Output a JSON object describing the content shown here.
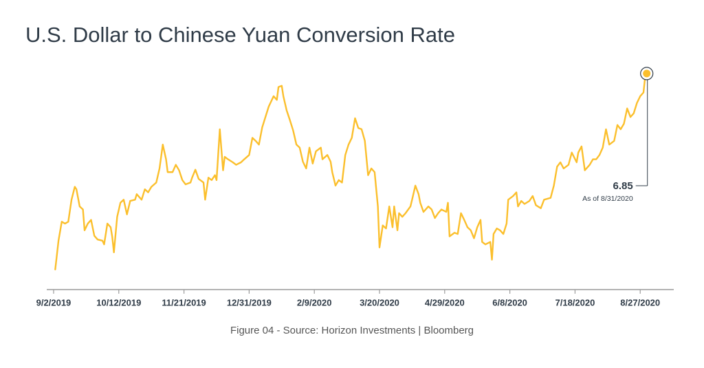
{
  "chart_data": {
    "type": "line",
    "title": "U.S. Dollar to Chinese Yuan Conversion Rate",
    "source": "Figure 04 - Source: Horizon Investments | Bloomberg",
    "annotation": "As of 8/31/2020",
    "color": "#fbbf2c",
    "xlim": [
      "8/29/2019",
      "9/17/2020"
    ],
    "xticks": [
      "9/2/2019",
      "10/12/2019",
      "11/21/2019",
      "12/31/2019",
      "2/9/2020",
      "3/20/2020",
      "4/29/2020",
      "6/8/2020",
      "7/18/2020",
      "8/27/2020"
    ],
    "ylim": [
      7.2,
      6.84
    ],
    "x": [
      "9/3/2019",
      "9/5/2019",
      "9/7/2019",
      "9/9/2019",
      "9/11/2019",
      "9/13/2019",
      "9/15/2019",
      "9/16/2019",
      "9/18/2019",
      "9/20/2019",
      "9/21/2019",
      "9/23/2019",
      "9/25/2019",
      "9/27/2019",
      "9/29/2019",
      "10/2/2019",
      "10/3/2019",
      "10/5/2019",
      "10/7/2019",
      "10/8/2019",
      "10/9/2019",
      "10/11/2019",
      "10/13/2019",
      "10/15/2019",
      "10/17/2019",
      "10/19/2019",
      "10/22/2019",
      "10/23/2019",
      "10/26/2019",
      "10/28/2019",
      "10/30/2019",
      "11/1/2019",
      "11/4/2019",
      "11/6/2019",
      "11/8/2019",
      "11/10/2019",
      "11/11/2019",
      "11/14/2019",
      "11/16/2019",
      "11/18/2019",
      "11/20/2019",
      "11/22/2019",
      "11/25/2019",
      "11/26/2019",
      "11/28/2019",
      "11/30/2019",
      "12/3/2019",
      "12/4/2019",
      "12/6/2019",
      "12/8/2019",
      "12/10/2019",
      "12/11/2019",
      "12/13/2019",
      "12/15/2019",
      "12/16/2019",
      "12/18/2019",
      "12/21/2019",
      "12/23/2019",
      "12/26/2019",
      "12/28/2019",
      "12/31/2019",
      "1/2/2020",
      "1/4/2020",
      "1/6/2020",
      "1/8/2020",
      "1/10/2020",
      "1/12/2020",
      "1/15/2020",
      "1/17/2020",
      "1/18/2020",
      "1/20/2020",
      "1/21/2020",
      "1/23/2020",
      "1/25/2020",
      "1/27/2020",
      "1/29/2020",
      "1/31/2020",
      "2/2/2020",
      "2/4/2020",
      "2/6/2020",
      "2/8/2020",
      "2/10/2020",
      "2/13/2020",
      "2/14/2020",
      "2/17/2020",
      "2/19/2020",
      "2/20/2020",
      "2/22/2020",
      "2/24/2020",
      "2/26/2020",
      "2/28/2020",
      "3/1/2020",
      "3/3/2020",
      "3/5/2020",
      "3/7/2020",
      "3/9/2020",
      "3/11/2020",
      "3/13/2020",
      "3/15/2020",
      "3/17/2020",
      "3/19/2020",
      "3/20/2020",
      "3/22/2020",
      "3/24/2020",
      "3/26/2020",
      "3/28/2020",
      "3/29/2020",
      "3/31/2020",
      "4/1/2020",
      "4/3/2020",
      "4/5/2020",
      "4/8/2020",
      "4/9/2020",
      "4/11/2020",
      "4/13/2020",
      "4/14/2020",
      "4/16/2020",
      "4/19/2020",
      "4/21/2020",
      "4/23/2020",
      "4/25/2020",
      "4/27/2020",
      "4/30/2020",
      "5/1/2020",
      "5/2/2020",
      "5/5/2020",
      "5/7/2020",
      "5/9/2020",
      "5/11/2020",
      "5/13/2020",
      "5/15/2020",
      "5/17/2020",
      "5/19/2020",
      "5/21/2020",
      "5/22/2020",
      "5/24/2020",
      "5/27/2020",
      "5/28/2020",
      "5/29/2020",
      "5/31/2020",
      "6/2/2020",
      "6/4/2020",
      "6/6/2020",
      "6/7/2020",
      "6/10/2020",
      "6/12/2020",
      "6/13/2020",
      "6/15/2020",
      "6/17/2020",
      "6/20/2020",
      "6/22/2020",
      "6/24/2020",
      "6/27/2020",
      "6/29/2020",
      "7/3/2020",
      "7/5/2020",
      "7/7/2020",
      "7/9/2020",
      "7/11/2020",
      "7/14/2020",
      "7/16/2020",
      "7/19/2020",
      "7/20/2020",
      "7/22/2020",
      "7/24/2020",
      "7/27/2020",
      "7/29/2020",
      "7/31/2020",
      "8/2/2020",
      "8/4/2020",
      "8/6/2020",
      "8/8/2020",
      "8/11/2020",
      "8/13/2020",
      "8/15/2020",
      "8/17/2020",
      "8/19/2020",
      "8/21/2020",
      "8/23/2020",
      "8/25/2020",
      "8/27/2020",
      "8/29/2020",
      "8/30/2020",
      "8/31/2020"
    ],
    "values": [
      7.17,
      7.123,
      7.092,
      7.095,
      7.092,
      7.056,
      7.035,
      7.039,
      7.067,
      7.072,
      7.106,
      7.095,
      7.089,
      7.115,
      7.121,
      7.123,
      7.129,
      7.095,
      7.101,
      7.117,
      7.142,
      7.084,
      7.061,
      7.056,
      7.08,
      7.058,
      7.056,
      7.047,
      7.056,
      7.039,
      7.044,
      7.035,
      7.028,
      7.005,
      6.966,
      6.99,
      7.011,
      7.011,
      6.999,
      7.008,
      7.024,
      7.031,
      7.028,
      7.02,
      7.007,
      7.022,
      7.028,
      7.056,
      7.02,
      7.024,
      7.016,
      7.024,
      6.941,
      7.008,
      6.986,
      6.99,
      6.995,
      6.999,
      6.995,
      6.99,
      6.983,
      6.955,
      6.96,
      6.966,
      6.938,
      6.921,
      6.904,
      6.887,
      6.893,
      6.872,
      6.87,
      6.887,
      6.91,
      6.926,
      6.943,
      6.966,
      6.971,
      6.994,
      7.005,
      6.971,
      6.997,
      6.977,
      6.971,
      6.99,
      6.983,
      6.994,
      7.011,
      7.033,
      7.024,
      7.028,
      6.983,
      6.966,
      6.955,
      6.923,
      6.939,
      6.941,
      6.96,
      7.016,
      7.005,
      7.011,
      7.067,
      7.134,
      7.098,
      7.103,
      7.067,
      7.101,
      7.067,
      7.106,
      7.078,
      7.084,
      7.078,
      7.067,
      7.056,
      7.033,
      7.047,
      7.061,
      7.076,
      7.067,
      7.072,
      7.086,
      7.078,
      7.072,
      7.076,
      7.061,
      7.116,
      7.11,
      7.112,
      7.078,
      7.089,
      7.101,
      7.106,
      7.119,
      7.101,
      7.089,
      7.125,
      7.129,
      7.125,
      7.154,
      7.112,
      7.103,
      7.106,
      7.112,
      7.095,
      7.056,
      7.05,
      7.044,
      7.067,
      7.058,
      7.063,
      7.058,
      7.05,
      7.065,
      7.07,
      7.056,
      7.053,
      7.033,
      7.002,
      6.995,
      7.005,
      6.999,
      6.979,
      6.995,
      6.979,
      6.969,
      7.008,
      6.999,
      6.99,
      6.99,
      6.983,
      6.971,
      6.941,
      6.966,
      6.96,
      6.934,
      6.941,
      6.932,
      6.907,
      6.921,
      6.915,
      6.898,
      6.887,
      6.881,
      6.856,
      6.85
    ]
  }
}
